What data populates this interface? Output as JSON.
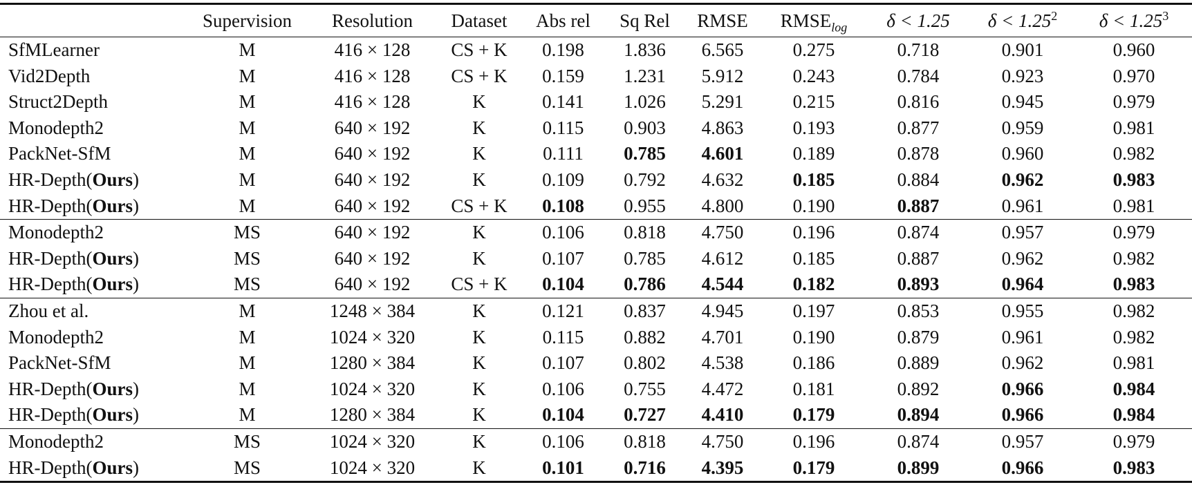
{
  "table": {
    "header": [
      "",
      "Supervision",
      "Resolution",
      "Dataset",
      "Abs rel",
      "Sq Rel",
      "RMSE",
      {
        "text": "RMSE",
        "sub": "log"
      },
      {
        "text": "δ < 1.25"
      },
      {
        "text": "δ < 1.25",
        "sup": "2"
      },
      {
        "text": "δ < 1.25",
        "sup": "3"
      }
    ],
    "groups": [
      [
        {
          "method": [
            "SfMLearner"
          ],
          "cells": [
            "M",
            "416 × 128",
            "CS + K",
            "0.198",
            "1.836",
            "6.565",
            "0.275",
            "0.718",
            "0.901",
            "0.960"
          ]
        },
        {
          "method": [
            "Vid2Depth"
          ],
          "cells": [
            "M",
            "416 × 128",
            "CS + K",
            "0.159",
            "1.231",
            "5.912",
            "0.243",
            "0.784",
            "0.923",
            "0.970"
          ]
        },
        {
          "method": [
            "Struct2Depth"
          ],
          "cells": [
            "M",
            "416 × 128",
            "K",
            "0.141",
            "1.026",
            "5.291",
            "0.215",
            "0.816",
            "0.945",
            "0.979"
          ]
        },
        {
          "method": [
            "Monodepth2"
          ],
          "cells": [
            "M",
            "640 × 192",
            "K",
            "0.115",
            "0.903",
            "4.863",
            "0.193",
            "0.877",
            "0.959",
            "0.981"
          ]
        },
        {
          "method": [
            "PackNet-SfM"
          ],
          "cells": [
            "M",
            "640 × 192",
            "K",
            "0.111",
            {
              "text": "0.785",
              "bold": true
            },
            {
              "text": "4.601",
              "bold": true
            },
            "0.189",
            "0.878",
            "0.960",
            "0.982"
          ]
        },
        {
          "method": [
            "HR-Depth(",
            {
              "text": "Ours",
              "bold": true
            },
            ")"
          ],
          "cells": [
            "M",
            "640 × 192",
            "K",
            "0.109",
            "0.792",
            "4.632",
            {
              "text": "0.185",
              "bold": true
            },
            "0.884",
            {
              "text": "0.962",
              "bold": true
            },
            {
              "text": "0.983",
              "bold": true
            }
          ]
        },
        {
          "method": [
            "HR-Depth(",
            {
              "text": "Ours",
              "bold": true
            },
            ")"
          ],
          "cells": [
            "M",
            "640 × 192",
            "CS + K",
            {
              "text": "0.108",
              "bold": true
            },
            "0.955",
            "4.800",
            "0.190",
            {
              "text": "0.887",
              "bold": true
            },
            "0.961",
            "0.981"
          ]
        }
      ],
      [
        {
          "method": [
            "Monodepth2"
          ],
          "cells": [
            "MS",
            "640 × 192",
            "K",
            "0.106",
            "0.818",
            "4.750",
            "0.196",
            "0.874",
            "0.957",
            "0.979"
          ]
        },
        {
          "method": [
            "HR-Depth(",
            {
              "text": "Ours",
              "bold": true
            },
            ")"
          ],
          "cells": [
            "MS",
            "640 × 192",
            "K",
            "0.107",
            "0.785",
            "4.612",
            "0.185",
            "0.887",
            "0.962",
            "0.982"
          ]
        },
        {
          "method": [
            "HR-Depth(",
            {
              "text": "Ours",
              "bold": true
            },
            ")"
          ],
          "cells": [
            "MS",
            "640 × 192",
            "CS + K",
            {
              "text": "0.104",
              "bold": true
            },
            {
              "text": "0.786",
              "bold": true
            },
            {
              "text": "4.544",
              "bold": true
            },
            {
              "text": "0.182",
              "bold": true
            },
            {
              "text": "0.893",
              "bold": true
            },
            {
              "text": "0.964",
              "bold": true
            },
            {
              "text": "0.983",
              "bold": true
            }
          ]
        }
      ],
      [
        {
          "method": [
            "Zhou et al."
          ],
          "cells": [
            "M",
            "1248 × 384",
            "K",
            "0.121",
            "0.837",
            "4.945",
            "0.197",
            "0.853",
            "0.955",
            "0.982"
          ]
        },
        {
          "method": [
            "Monodepth2"
          ],
          "cells": [
            "M",
            "1024 × 320",
            "K",
            "0.115",
            "0.882",
            "4.701",
            "0.190",
            "0.879",
            "0.961",
            "0.982"
          ]
        },
        {
          "method": [
            "PackNet-SfM"
          ],
          "cells": [
            "M",
            "1280 × 384",
            "K",
            "0.107",
            "0.802",
            "4.538",
            "0.186",
            "0.889",
            "0.962",
            "0.981"
          ]
        },
        {
          "method": [
            "HR-Depth(",
            {
              "text": "Ours",
              "bold": true
            },
            ")"
          ],
          "cells": [
            "M",
            "1024 × 320",
            "K",
            "0.106",
            "0.755",
            "4.472",
            "0.181",
            "0.892",
            {
              "text": "0.966",
              "bold": true
            },
            {
              "text": "0.984",
              "bold": true
            }
          ]
        },
        {
          "method": [
            "HR-Depth(",
            {
              "text": "Ours",
              "bold": true
            },
            ")"
          ],
          "cells": [
            "M",
            "1280 × 384",
            "K",
            {
              "text": "0.104",
              "bold": true
            },
            {
              "text": "0.727",
              "bold": true
            },
            {
              "text": "4.410",
              "bold": true
            },
            {
              "text": "0.179",
              "bold": true
            },
            {
              "text": "0.894",
              "bold": true
            },
            {
              "text": "0.966",
              "bold": true
            },
            {
              "text": "0.984",
              "bold": true
            }
          ]
        }
      ],
      [
        {
          "method": [
            "Monodepth2"
          ],
          "cells": [
            "MS",
            "1024 × 320",
            "K",
            "0.106",
            "0.818",
            "4.750",
            "0.196",
            "0.874",
            "0.957",
            "0.979"
          ]
        },
        {
          "method": [
            "HR-Depth(",
            {
              "text": "Ours",
              "bold": true
            },
            ")"
          ],
          "cells": [
            "MS",
            "1024 × 320",
            "K",
            {
              "text": "0.101",
              "bold": true
            },
            {
              "text": "0.716",
              "bold": true
            },
            {
              "text": "4.395",
              "bold": true
            },
            {
              "text": "0.179",
              "bold": true
            },
            {
              "text": "0.899",
              "bold": true
            },
            {
              "text": "0.966",
              "bold": true
            },
            {
              "text": "0.983",
              "bold": true
            }
          ]
        }
      ]
    ]
  }
}
